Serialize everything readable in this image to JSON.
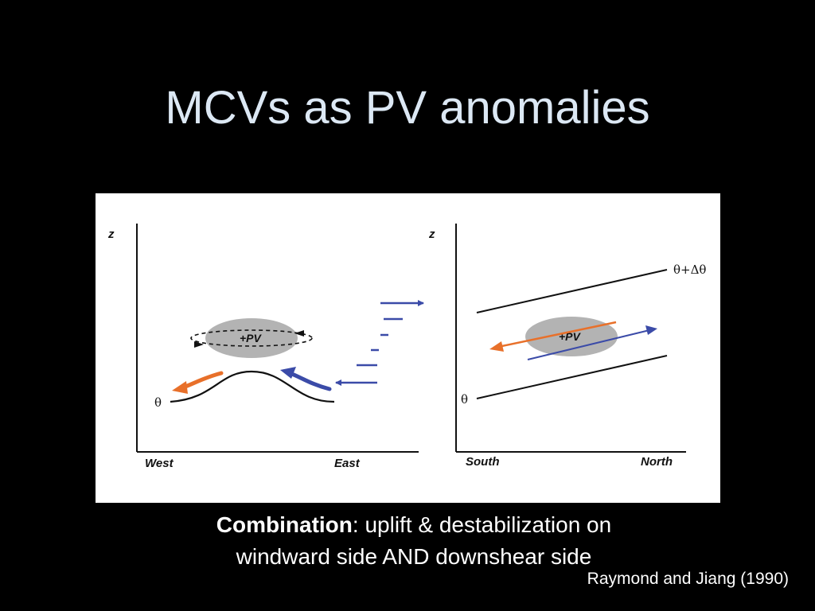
{
  "slide": {
    "title": "MCVs as PV anomalies"
  },
  "figure": {
    "left_panel": {
      "z_label": "z",
      "x_left_label": "West",
      "x_right_label": "East",
      "theta_label": "θ",
      "pv_label": "+PV"
    },
    "right_panel": {
      "z_label": "z",
      "x_left_label": "South",
      "x_right_label": "North",
      "theta_label": "θ",
      "theta_upper_label": "θ+Δθ",
      "pv_label": "+PV"
    },
    "colors": {
      "orange_arrow": "#e8702a",
      "blue_arrow": "#3b4ba8",
      "pv_blob": "#b3b3b3"
    }
  },
  "caption": {
    "bold": "Combination",
    "line1_rest": ": uplift & destabilization on",
    "line2": "windward side AND downshear side"
  },
  "citation": "Raymond and Jiang (1990)"
}
